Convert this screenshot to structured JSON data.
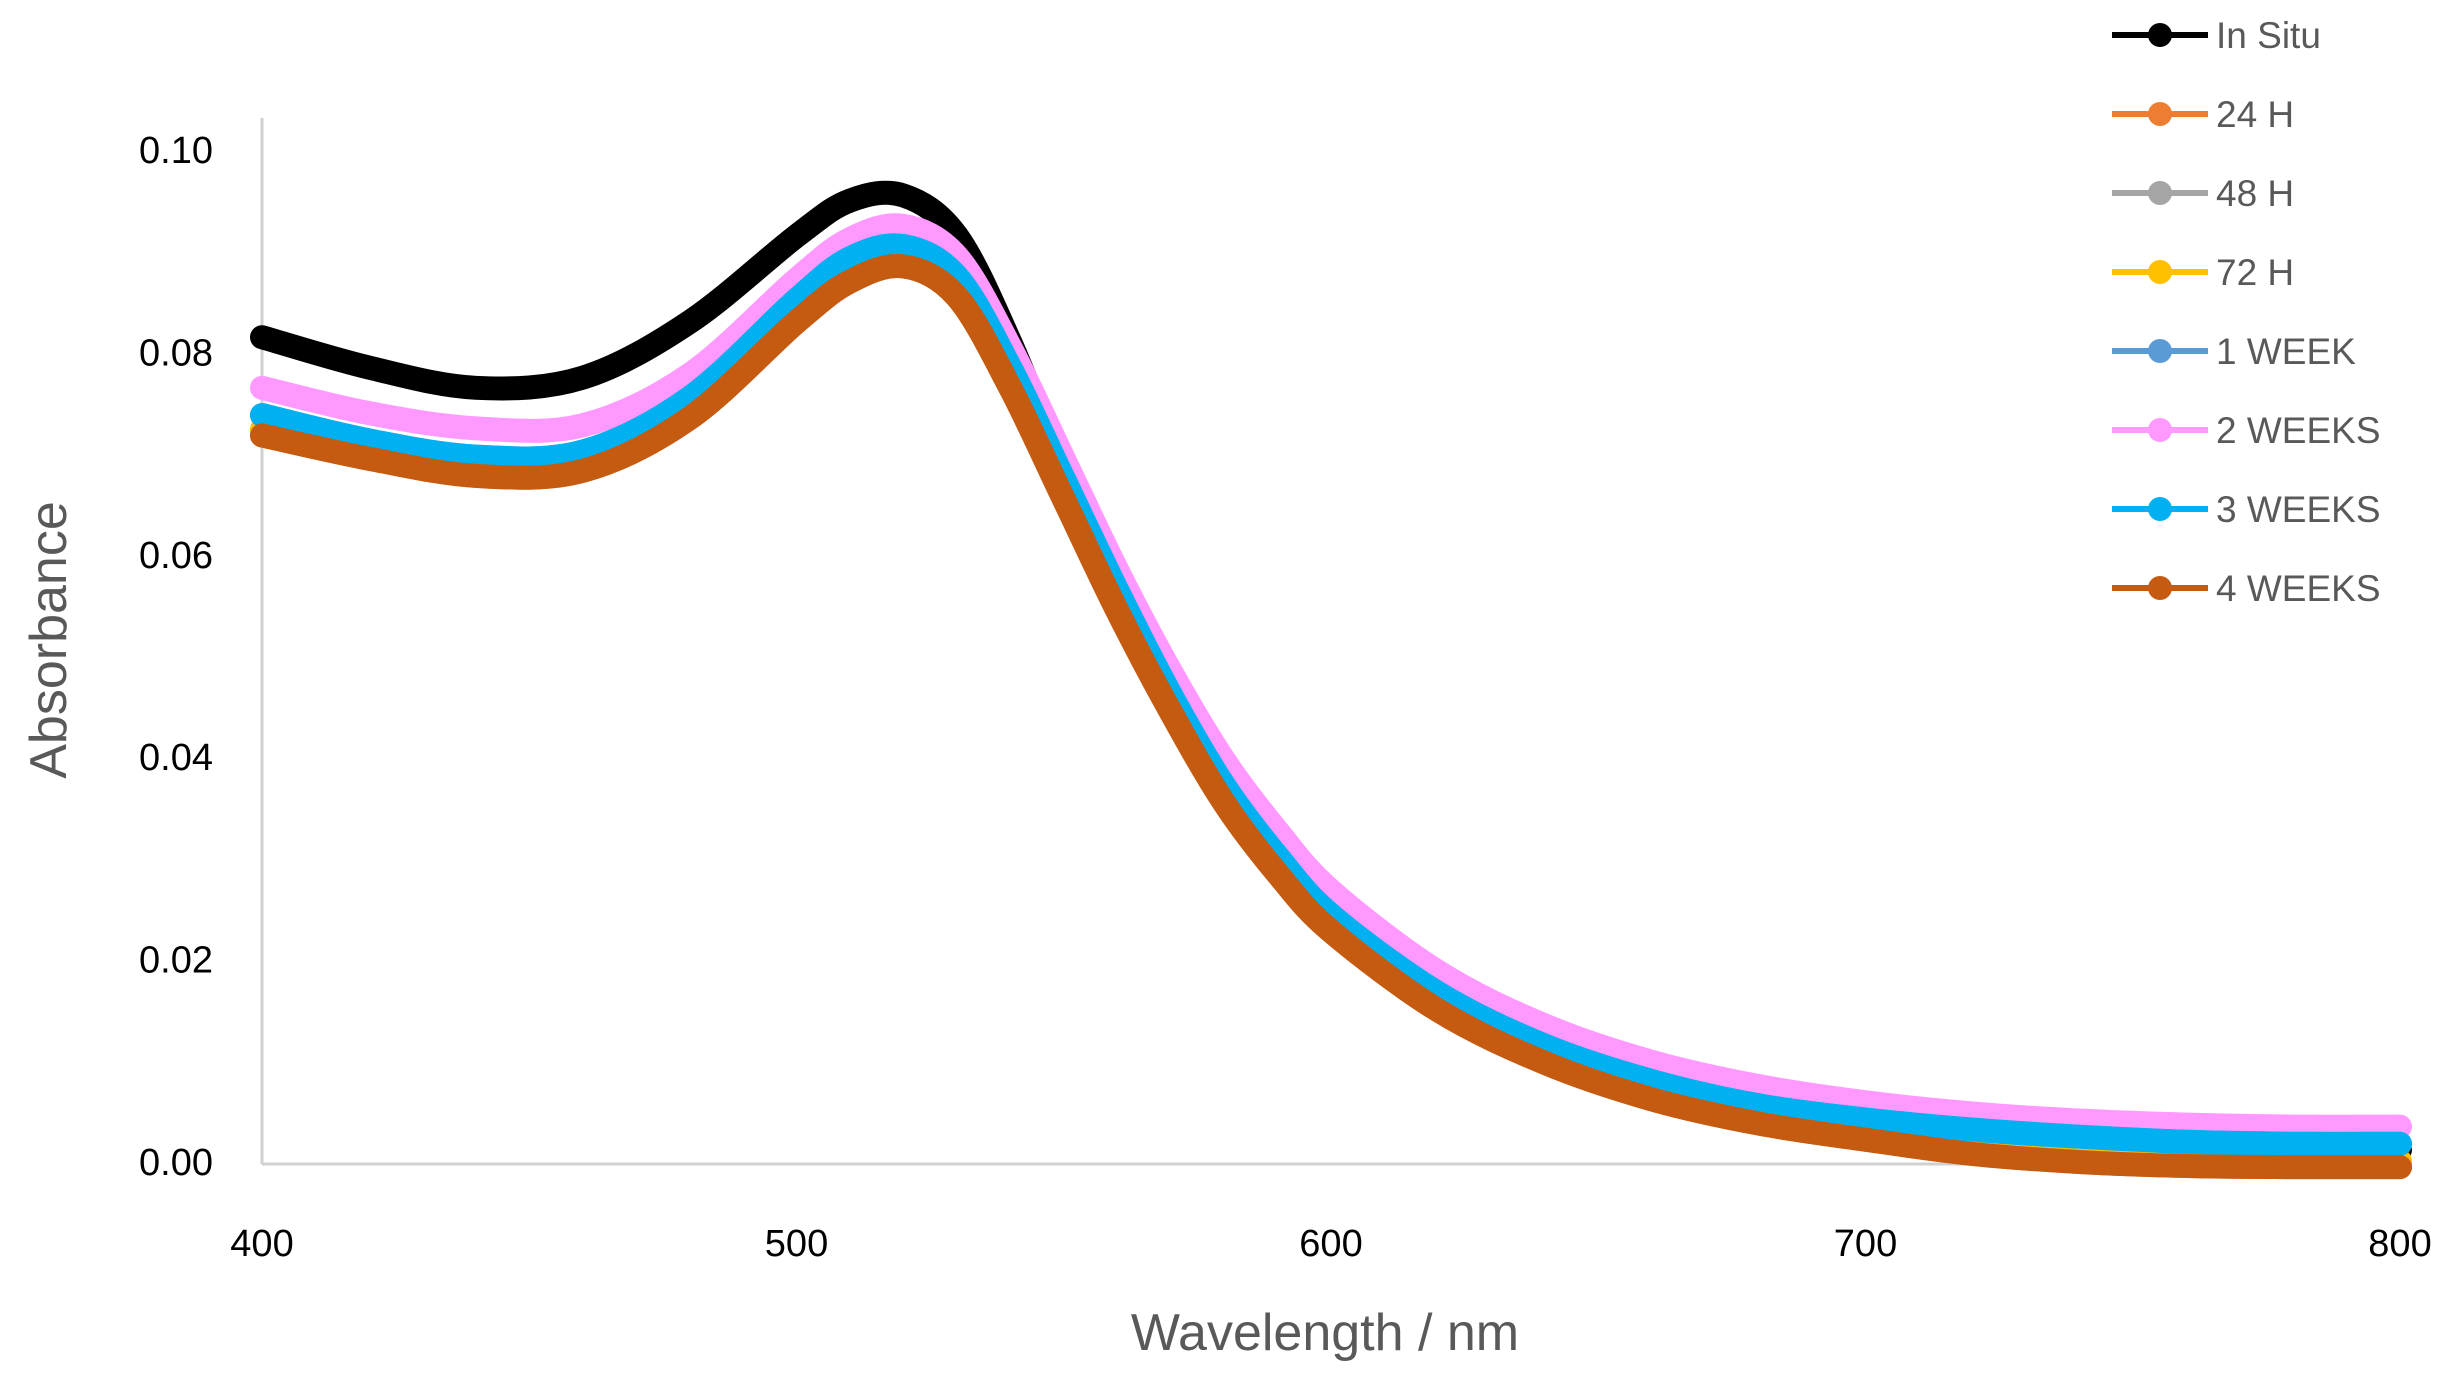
{
  "chart_data": {
    "type": "line",
    "title": "",
    "xlabel": "Wavelength / nm",
    "ylabel": "Absorbance",
    "xlim": [
      400,
      800
    ],
    "ylim": [
      0,
      0.1
    ],
    "x_ticks": [
      400,
      500,
      600,
      700,
      800
    ],
    "x_tick_labels": [
      "400",
      "500",
      "600",
      "700",
      "800"
    ],
    "y_ticks": [
      0,
      0.02,
      0.04,
      0.06,
      0.08,
      0.1
    ],
    "y_tick_labels": [
      "0.00",
      "0.02",
      "0.04",
      "0.06",
      "0.08",
      "0.10"
    ],
    "grid": false,
    "legend_position": "top-right",
    "x": [
      400,
      420,
      440,
      460,
      480,
      500,
      510,
      520,
      530,
      540,
      550,
      560,
      570,
      580,
      590,
      600,
      620,
      640,
      660,
      680,
      700,
      720,
      740,
      760,
      780,
      800
    ],
    "series": [
      {
        "name": "In Situ",
        "color": "#000000",
        "values": [
          0.0815,
          0.0785,
          0.0765,
          0.0775,
          0.083,
          0.0915,
          0.095,
          0.0955,
          0.0915,
          0.081,
          0.068,
          0.056,
          0.045,
          0.036,
          0.029,
          0.0235,
          0.0165,
          0.0115,
          0.0082,
          0.0058,
          0.0038,
          0.0024,
          0.0016,
          0.0012,
          0.0012,
          0.0012
        ]
      },
      {
        "name": "24 H",
        "color": "#ED7D31",
        "values": [
          0.0718,
          0.0695,
          0.0678,
          0.0683,
          0.0735,
          0.083,
          0.087,
          0.0885,
          0.0855,
          0.0765,
          0.0655,
          0.0545,
          0.0445,
          0.0355,
          0.0285,
          0.0228,
          0.015,
          0.0098,
          0.0062,
          0.0038,
          0.0022,
          0.0008,
          0.0,
          -0.0004,
          -0.0005,
          -0.0005
        ]
      },
      {
        "name": "48 H",
        "color": "#A5A5A5",
        "values": [
          0.0721,
          0.0698,
          0.0681,
          0.0686,
          0.0738,
          0.0833,
          0.0873,
          0.0888,
          0.0858,
          0.0768,
          0.0658,
          0.0548,
          0.0448,
          0.0358,
          0.0288,
          0.0231,
          0.0153,
          0.0101,
          0.0065,
          0.0041,
          0.0025,
          0.0011,
          0.0003,
          -0.0001,
          -0.0002,
          -0.0002
        ]
      },
      {
        "name": "72 H",
        "color": "#FFC000",
        "values": [
          0.0724,
          0.0701,
          0.0684,
          0.0689,
          0.0741,
          0.0836,
          0.0876,
          0.0891,
          0.0861,
          0.0771,
          0.0661,
          0.0551,
          0.0451,
          0.0361,
          0.0291,
          0.0234,
          0.0156,
          0.0104,
          0.0068,
          0.0044,
          0.0028,
          0.0014,
          0.0006,
          0.0002,
          0.0001,
          0.0001
        ]
      },
      {
        "name": "1 WEEK",
        "color": "#5B9BD5",
        "values": [
          0.0738,
          0.0713,
          0.0697,
          0.0702,
          0.0755,
          0.0852,
          0.0893,
          0.0905,
          0.0875,
          0.0785,
          0.0675,
          0.0565,
          0.0462,
          0.0372,
          0.0302,
          0.0244,
          0.0167,
          0.0115,
          0.008,
          0.0056,
          0.0042,
          0.0032,
          0.0025,
          0.002,
          0.0018,
          0.0018
        ]
      },
      {
        "name": "2 WEEKS",
        "color": "#FF99FF",
        "values": [
          0.0765,
          0.074,
          0.0725,
          0.0728,
          0.0778,
          0.0872,
          0.0912,
          0.0925,
          0.0895,
          0.0805,
          0.0695,
          0.0585,
          0.0485,
          0.0397,
          0.0327,
          0.0268,
          0.0188,
          0.0135,
          0.0099,
          0.0075,
          0.0059,
          0.0048,
          0.0041,
          0.0037,
          0.0035,
          0.0035
        ]
      },
      {
        "name": "3 WEEKS",
        "color": "#00B0F0",
        "values": [
          0.0738,
          0.0713,
          0.0697,
          0.0702,
          0.0755,
          0.0852,
          0.0893,
          0.0905,
          0.0875,
          0.0785,
          0.0675,
          0.0565,
          0.0462,
          0.0372,
          0.0302,
          0.0244,
          0.0167,
          0.0115,
          0.008,
          0.0056,
          0.0042,
          0.0032,
          0.0025,
          0.002,
          0.0018,
          0.0018
        ]
      },
      {
        "name": "4 WEEKS",
        "color": "#C55A11",
        "values": [
          0.0718,
          0.0695,
          0.0678,
          0.0683,
          0.0735,
          0.083,
          0.087,
          0.0885,
          0.0855,
          0.0765,
          0.0655,
          0.0545,
          0.0445,
          0.0355,
          0.0285,
          0.0228,
          0.015,
          0.0098,
          0.0062,
          0.0038,
          0.0022,
          0.0008,
          0.0,
          -0.0004,
          -0.0005,
          -0.0005
        ]
      }
    ]
  }
}
